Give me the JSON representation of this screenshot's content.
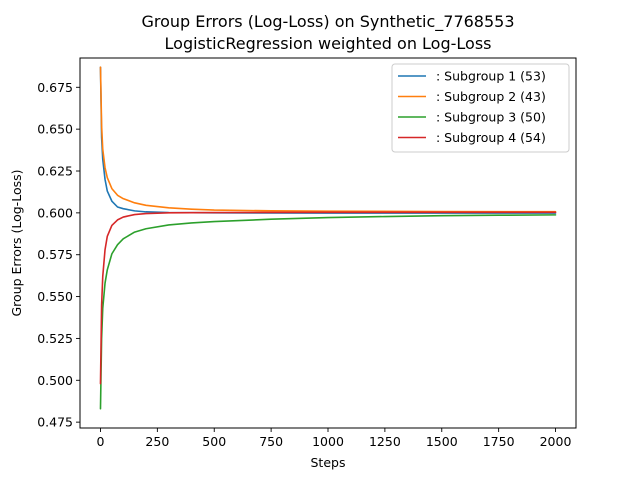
{
  "chart_data": {
    "type": "line",
    "title": "Group Errors (Log-Loss) on Synthetic_7768553",
    "subtitle": "LogisticRegression weighted on Log-Loss",
    "xlabel": "Steps",
    "ylabel": "Group Errors (Log-Loss)",
    "xlim": [
      -90,
      2090
    ],
    "ylim": [
      0.4715,
      0.6925
    ],
    "xticks": [
      0,
      250,
      500,
      750,
      1000,
      1250,
      1500,
      1750,
      2000
    ],
    "yticks": [
      0.475,
      0.5,
      0.525,
      0.55,
      0.575,
      0.6,
      0.625,
      0.65,
      0.675
    ],
    "ytick_labels": [
      "0.475",
      "0.500",
      "0.525",
      "0.550",
      "0.575",
      "0.600",
      "0.625",
      "0.650",
      "0.675"
    ],
    "grid": false,
    "legend_position": "top-right",
    "series": [
      {
        "name": ": Subgroup 1  (53)",
        "color": "#1f77b4",
        "x": [
          0,
          5,
          10,
          20,
          30,
          50,
          75,
          100,
          150,
          200,
          300,
          500,
          1000,
          2000
        ],
        "y": [
          0.687,
          0.645,
          0.632,
          0.62,
          0.613,
          0.607,
          0.6035,
          0.6025,
          0.6012,
          0.6006,
          0.6002,
          0.6,
          0.5999,
          0.5999
        ]
      },
      {
        "name": ": Subgroup 2  (43)",
        "color": "#ff7f0e",
        "x": [
          0,
          5,
          10,
          20,
          30,
          50,
          75,
          100,
          150,
          200,
          300,
          400,
          500,
          750,
          1000,
          1500,
          2000
        ],
        "y": [
          0.687,
          0.652,
          0.638,
          0.627,
          0.621,
          0.6145,
          0.6105,
          0.6085,
          0.606,
          0.6045,
          0.603,
          0.6022,
          0.6017,
          0.6012,
          0.601,
          0.6008,
          0.6007
        ]
      },
      {
        "name": ": Subgroup 3  (50)",
        "color": "#2ca02c",
        "x": [
          0,
          5,
          10,
          20,
          30,
          50,
          75,
          100,
          150,
          200,
          300,
          400,
          500,
          750,
          1000,
          1250,
          1500,
          1750,
          2000
        ],
        "y": [
          0.483,
          0.525,
          0.543,
          0.558,
          0.566,
          0.5755,
          0.581,
          0.5845,
          0.5885,
          0.5905,
          0.5928,
          0.594,
          0.5948,
          0.5962,
          0.5972,
          0.5978,
          0.5983,
          0.5986,
          0.5988
        ]
      },
      {
        "name": ": Subgroup 4  (54)",
        "color": "#d62728",
        "x": [
          0,
          5,
          10,
          20,
          30,
          50,
          75,
          100,
          150,
          200,
          300,
          500,
          1000,
          2000
        ],
        "y": [
          0.498,
          0.545,
          0.562,
          0.578,
          0.586,
          0.5925,
          0.5958,
          0.5975,
          0.599,
          0.5996,
          0.6,
          0.6002,
          0.6003,
          0.6003
        ]
      }
    ]
  }
}
